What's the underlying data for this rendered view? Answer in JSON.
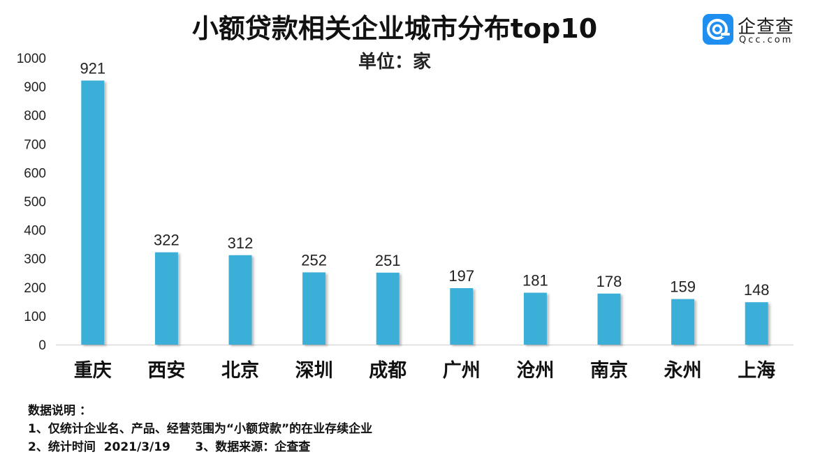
{
  "chart_data": {
    "type": "bar",
    "title": "小额贷款相关企业城市分布top10",
    "subtitle": "单位：家",
    "categories": [
      "重庆",
      "西安",
      "北京",
      "深圳",
      "成都",
      "广州",
      "沧州",
      "南京",
      "永州",
      "上海"
    ],
    "values": [
      921,
      322,
      312,
      252,
      251,
      197,
      181,
      178,
      159,
      148
    ],
    "ylim": [
      0,
      1000
    ],
    "yticks": [
      0,
      100,
      200,
      300,
      400,
      500,
      600,
      700,
      800,
      900,
      1000
    ],
    "xlabel": "",
    "ylabel": "",
    "grid": false,
    "bar_color": "#3AAFD8",
    "data_labels": true
  },
  "logo": {
    "name_cn": "企查查",
    "name_en": "Qcc.com",
    "color": "#1F8EF1"
  },
  "notes": {
    "heading": "数据说明 ：",
    "line1": "1、仅统计企业名、产品、经营范围为“小额贷款”的在业存续企业",
    "line2": "2、统计时间  2021/3/19      3、数据来源：企查查"
  }
}
